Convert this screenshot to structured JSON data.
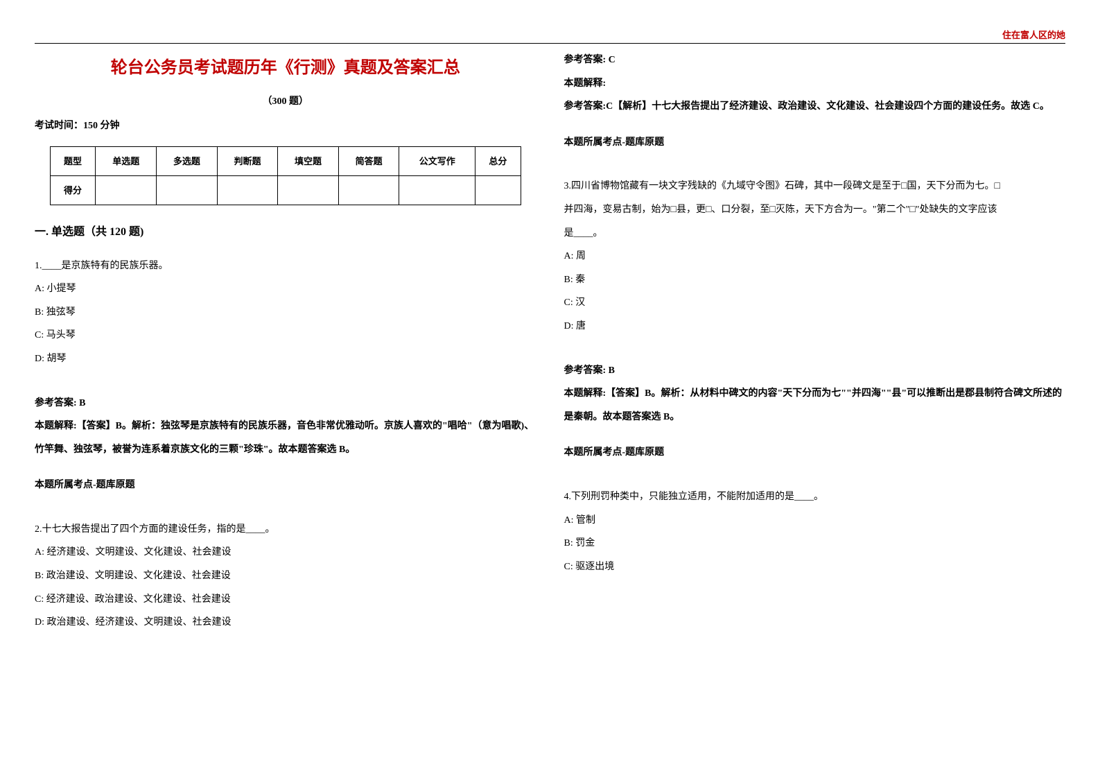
{
  "watermark": "住在富人区的她",
  "title": "轮台公务员考试题历年《行测》真题及答案汇总",
  "subtitle": "（300 题）",
  "time_info": "考试时间：150 分钟",
  "table": {
    "headers": [
      "题型",
      "单选题",
      "多选题",
      "判断题",
      "填空题",
      "简答题",
      "公文写作",
      "总分"
    ],
    "row_label": "得分"
  },
  "section1_header": "一. 单选题（共 120 题)",
  "q1": {
    "stem": "1.____是京族特有的民族乐器。",
    "a": "A: 小提琴",
    "b": "B: 独弦琴",
    "c": "C: 马头琴",
    "d": "D: 胡琴",
    "ans_label": "参考答案: B",
    "explain": "本题解释:【答案】B。解析：独弦琴是京族特有的民族乐器，音色非常优雅动听。京族人喜欢的\"唱哈\"（意为唱歌)、竹竿舞、独弦琴，被誉为连系着京族文化的三颗\"珍珠\"。故本题答案选 B。",
    "point": "本题所属考点-题库原题"
  },
  "q2": {
    "stem": "2.十七大报告提出了四个方面的建设任务，指的是____。",
    "a": "A: 经济建设、文明建设、文化建设、社会建设",
    "b": "B: 政治建设、文明建设、文化建设、社会建设",
    "c": "C: 经济建设、政治建设、文化建设、社会建设",
    "d": "D: 政治建设、经济建设、文明建设、社会建设"
  },
  "q2ans": {
    "ans_label": "参考答案: C",
    "explain_label": "本题解释:",
    "explain": "参考答案:C【解析】十七大报告提出了经济建设、政治建设、文化建设、社会建设四个方面的建设任务。故选 C。",
    "point": "本题所属考点-题库原题"
  },
  "q3": {
    "stem1": "3.四川省博物馆藏有一块文字残缺的《九域守令图》石碑，其中一段碑文是至于□国，天下分而为七。□",
    "stem2": "并四海，变易古制，始为□县，更□、口分裂，至□灭陈，天下方合为一。\"第二个\"□\"处缺失的文字应该",
    "stem3": "是____。",
    "a": "A: 周",
    "b": "B: 秦",
    "c": "C: 汉",
    "d": "D: 唐",
    "ans_label": "参考答案: B",
    "explain": "本题解释:【答案】B。解析：从材料中碑文的内容\"天下分而为七\"\"并四海\"\"县\"可以推断出是郡县制符合碑文所述的是秦朝。故本题答案选 B。",
    "point": "本题所属考点-题库原题"
  },
  "q4": {
    "stem": "4.下列刑罚种类中，只能独立适用，不能附加适用的是____。",
    "a": "A: 管制",
    "b": "B: 罚金",
    "c": "C: 驱逐出境"
  },
  "colors": {
    "accent": "#c00000",
    "text": "#000000",
    "bg": "#ffffff"
  }
}
